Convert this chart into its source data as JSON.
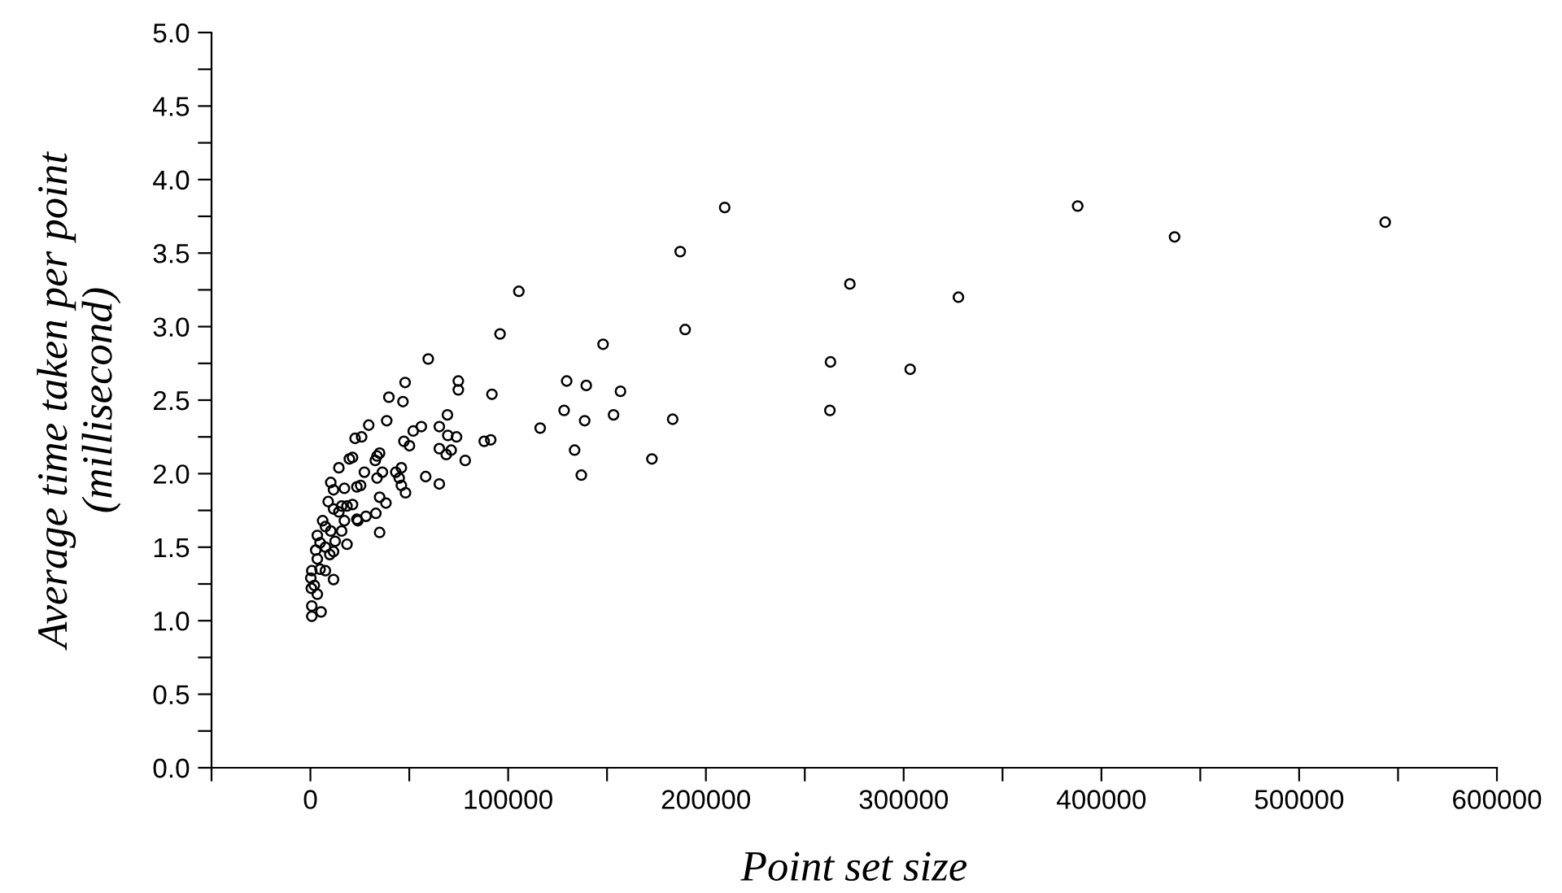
{
  "chart_data": {
    "type": "scatter",
    "xlabel": "Point set size",
    "ylabel": "Average time taken per point\n(millisecond)",
    "marker": "circle",
    "grid": false,
    "xlim": [
      -50000,
      600000
    ],
    "ylim": [
      0,
      5
    ],
    "xticks": [
      {
        "value": -50000,
        "label": null
      },
      0,
      {
        "value": 50000,
        "label": null
      },
      100000,
      {
        "value": 150000,
        "label": null
      },
      200000,
      {
        "value": 250000,
        "label": null
      },
      300000,
      {
        "value": 350000,
        "label": null
      },
      400000,
      {
        "value": 450000,
        "label": null
      },
      500000,
      {
        "value": 550000,
        "label": null
      },
      600000
    ],
    "yticks": [
      {
        "value": 0,
        "label": "0.0"
      },
      {
        "value": 0.25,
        "label": null
      },
      0.5,
      {
        "value": 0.75,
        "label": null
      },
      {
        "value": 1,
        "label": "1.0"
      },
      {
        "value": 1.25,
        "label": null
      },
      1.5,
      {
        "value": 1.75,
        "label": null
      },
      {
        "value": 2,
        "label": "2.0"
      },
      {
        "value": 2.25,
        "label": null
      },
      2.5,
      {
        "value": 2.75,
        "label": null
      },
      {
        "value": 3,
        "label": "3.0"
      },
      {
        "value": 3.25,
        "label": null
      },
      3.5,
      {
        "value": 3.75,
        "label": null
      },
      {
        "value": 4,
        "label": "4.0"
      },
      {
        "value": 4.25,
        "label": null
      },
      4.5,
      {
        "value": 4.75,
        "label": null
      },
      {
        "value": 5,
        "label": "5.0"
      }
    ],
    "series": [
      {
        "color": "#000000",
        "x": [
          388000,
          437000,
          543500,
          209500,
          187000,
          105400,
          95900,
          148000,
          189500,
          272800,
          327700,
          263000,
          303300,
          262700,
          91800,
          129600,
          139500,
          156800,
          128300,
          138700,
          153300,
          183200,
          91200,
          116200,
          133600,
          137000,
          172700,
          59600,
          47900,
          74800,
          74800,
          39700,
          46800,
          69300,
          38600,
          29500,
          65200,
          56100,
          52000,
          87900,
          22600,
          25900,
          47300,
          50100,
          69500,
          73900,
          65200,
          68700,
          71200,
          78300,
          19700,
          21300,
          33700,
          35000,
          32800,
          14400,
          46000,
          27300,
          43200,
          58300,
          65200,
          44900,
          46000,
          48100,
          36400,
          33700,
          23500,
          25400,
          17200,
          10300,
          11700,
          35000,
          38200,
          33100,
          28100,
          23500,
          21300,
          18500,
          15800,
          9000,
          11700,
          14400,
          17200,
          24000,
          6200,
          7600,
          10300,
          15800,
          35000,
          3500,
          4900,
          12500,
          18500,
          7600,
          2700,
          9800,
          3500,
          11700,
          700,
          4900,
          7600,
          11700,
          200,
          2000,
          500,
          3500,
          700,
          5400,
          700
        ],
        "values": [
          3.82,
          3.61,
          3.71,
          3.81,
          3.51,
          3.24,
          2.95,
          2.88,
          2.98,
          3.29,
          3.2,
          2.76,
          2.71,
          2.43,
          2.54,
          2.63,
          2.6,
          2.56,
          2.43,
          2.36,
          2.4,
          2.37,
          2.23,
          2.31,
          2.16,
          1.99,
          2.1,
          2.78,
          2.62,
          2.63,
          2.57,
          2.52,
          2.49,
          2.4,
          2.36,
          2.33,
          2.32,
          2.32,
          2.29,
          2.22,
          2.24,
          2.25,
          2.22,
          2.19,
          2.26,
          2.25,
          2.17,
          2.13,
          2.16,
          2.09,
          2.1,
          2.11,
          2.12,
          2.14,
          2.09,
          2.04,
          2.04,
          2.01,
          2.01,
          1.98,
          1.93,
          1.97,
          1.92,
          1.87,
          2.01,
          1.97,
          1.91,
          1.92,
          1.9,
          1.94,
          1.89,
          1.84,
          1.8,
          1.73,
          1.71,
          1.69,
          1.79,
          1.78,
          1.78,
          1.81,
          1.76,
          1.74,
          1.68,
          1.68,
          1.68,
          1.64,
          1.61,
          1.61,
          1.6,
          1.58,
          1.53,
          1.54,
          1.52,
          1.5,
          1.48,
          1.45,
          1.42,
          1.47,
          1.34,
          1.35,
          1.34,
          1.28,
          1.29,
          1.24,
          1.22,
          1.18,
          1.1,
          1.06,
          1.03
        ]
      }
    ]
  }
}
